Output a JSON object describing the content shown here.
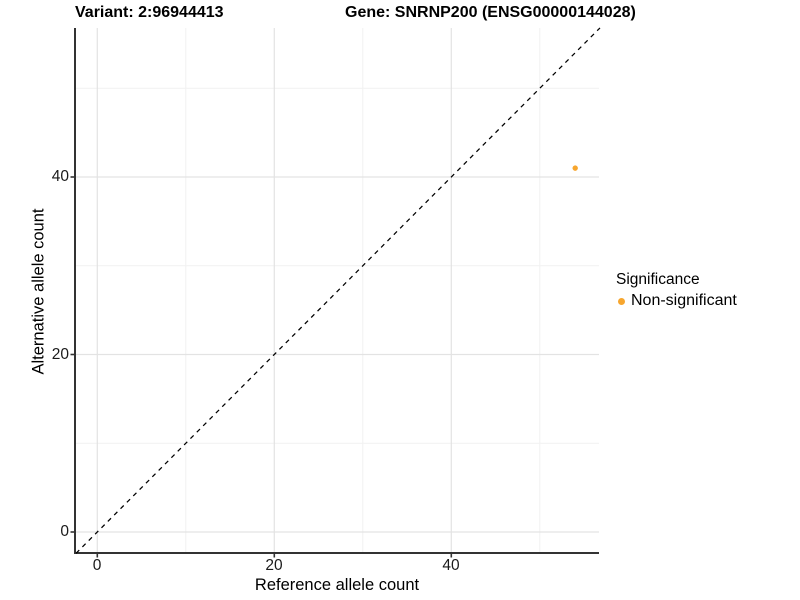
{
  "header": {
    "variant_title": "Variant: 2:96944413",
    "gene_title": "Gene: SNRNP200 (ENSG00000144028)"
  },
  "axes": {
    "x": {
      "label": "Reference allele count",
      "ticks": [
        "0",
        "20",
        "40"
      ]
    },
    "y": {
      "label": "Alternative allele count",
      "ticks": [
        "40",
        "20",
        "0"
      ]
    }
  },
  "legend": {
    "title": "Significance",
    "items": [
      {
        "label": "Non-significant",
        "color": "#F7A62E"
      }
    ]
  },
  "colors": {
    "background": "#ffffff",
    "grid_major": "#e3e3e3",
    "grid_minor": "#f1f1f1",
    "axis_line": "#333333",
    "reference_line": "#000000",
    "point": "#F7A62E"
  },
  "chart_data": {
    "type": "scatter",
    "title": "Variant: 2:96944413 | Gene: SNRNP200 (ENSG00000144028)",
    "xlabel": "Reference allele count",
    "ylabel": "Alternative allele count",
    "xlim": [
      -2.5,
      56.8
    ],
    "ylim": [
      -2.4,
      56.8
    ],
    "x_ticks": [
      0,
      20,
      40
    ],
    "y_ticks": [
      0,
      20,
      40
    ],
    "x_minor_ticks": [
      10,
      30,
      50
    ],
    "y_minor_ticks": [
      10,
      30,
      50
    ],
    "grid": "major+minor",
    "legend_title": "Significance",
    "legend_position": "right",
    "series": [
      {
        "name": "Non-significant",
        "color": "#F7A62E",
        "points": [
          {
            "x": 54,
            "y": 41
          }
        ]
      }
    ],
    "reference_line": {
      "slope": 1,
      "intercept": 0,
      "style": "dashed",
      "color": "#000000"
    }
  }
}
